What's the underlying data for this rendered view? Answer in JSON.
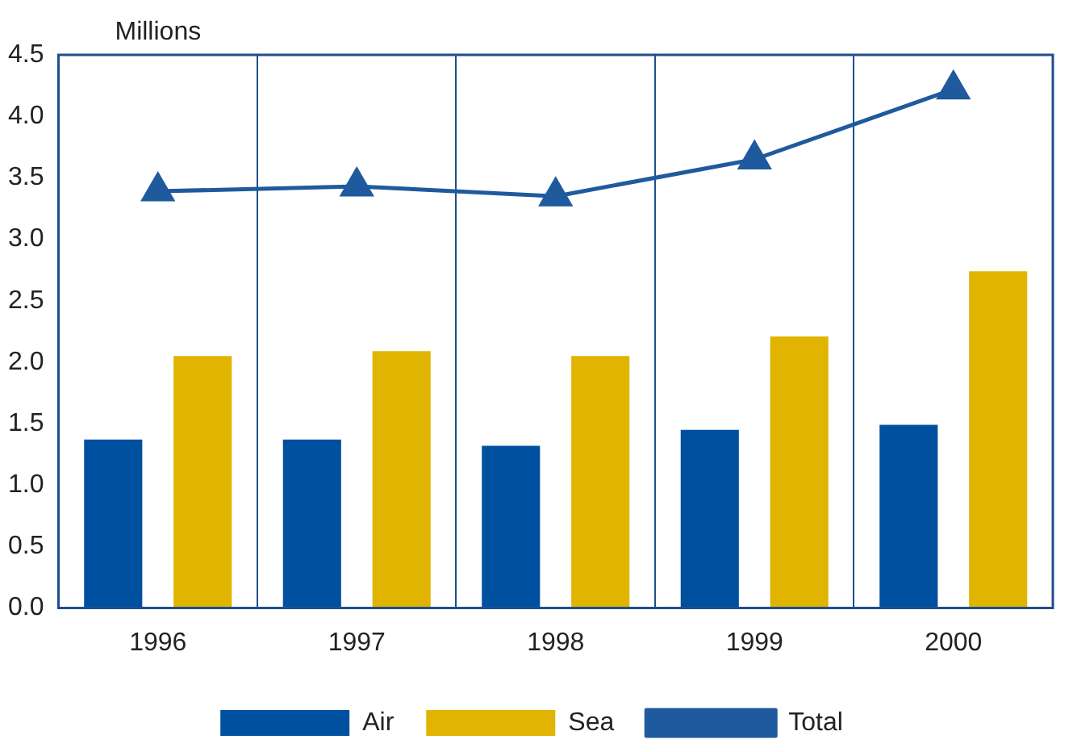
{
  "chart_data": {
    "type": "bar",
    "ylabel": "Millions",
    "categories": [
      "1996",
      "1997",
      "1998",
      "1999",
      "2000"
    ],
    "series": [
      {
        "name": "Air",
        "color": "#0050a0",
        "values": [
          1.37,
          1.37,
          1.32,
          1.45,
          1.49
        ]
      },
      {
        "name": "Sea",
        "color": "#e0b400",
        "values": [
          2.05,
          2.09,
          2.05,
          2.21,
          2.74
        ]
      },
      {
        "name": "Total",
        "type": "line",
        "color": "#1f5a9e",
        "values": [
          3.39,
          3.43,
          3.35,
          3.65,
          4.22
        ]
      }
    ],
    "ylim": [
      0,
      4.5
    ],
    "yticks": [
      {
        "value": 0,
        "label": "0.0"
      },
      {
        "value": 0.5,
        "label": "0.5"
      },
      {
        "value": 1,
        "label": "1.0"
      },
      {
        "value": 1.5,
        "label": "1.5"
      },
      {
        "value": 2,
        "label": "2.0"
      },
      {
        "value": 2.5,
        "label": "2.5"
      },
      {
        "value": 3,
        "label": "3.0"
      },
      {
        "value": 3.5,
        "label": "3.5"
      },
      {
        "value": 4,
        "label": "4.0"
      },
      {
        "value": 4.5,
        "label": "4.5"
      }
    ],
    "grid": "x",
    "legend": "bottom",
    "marker": "triangle"
  }
}
